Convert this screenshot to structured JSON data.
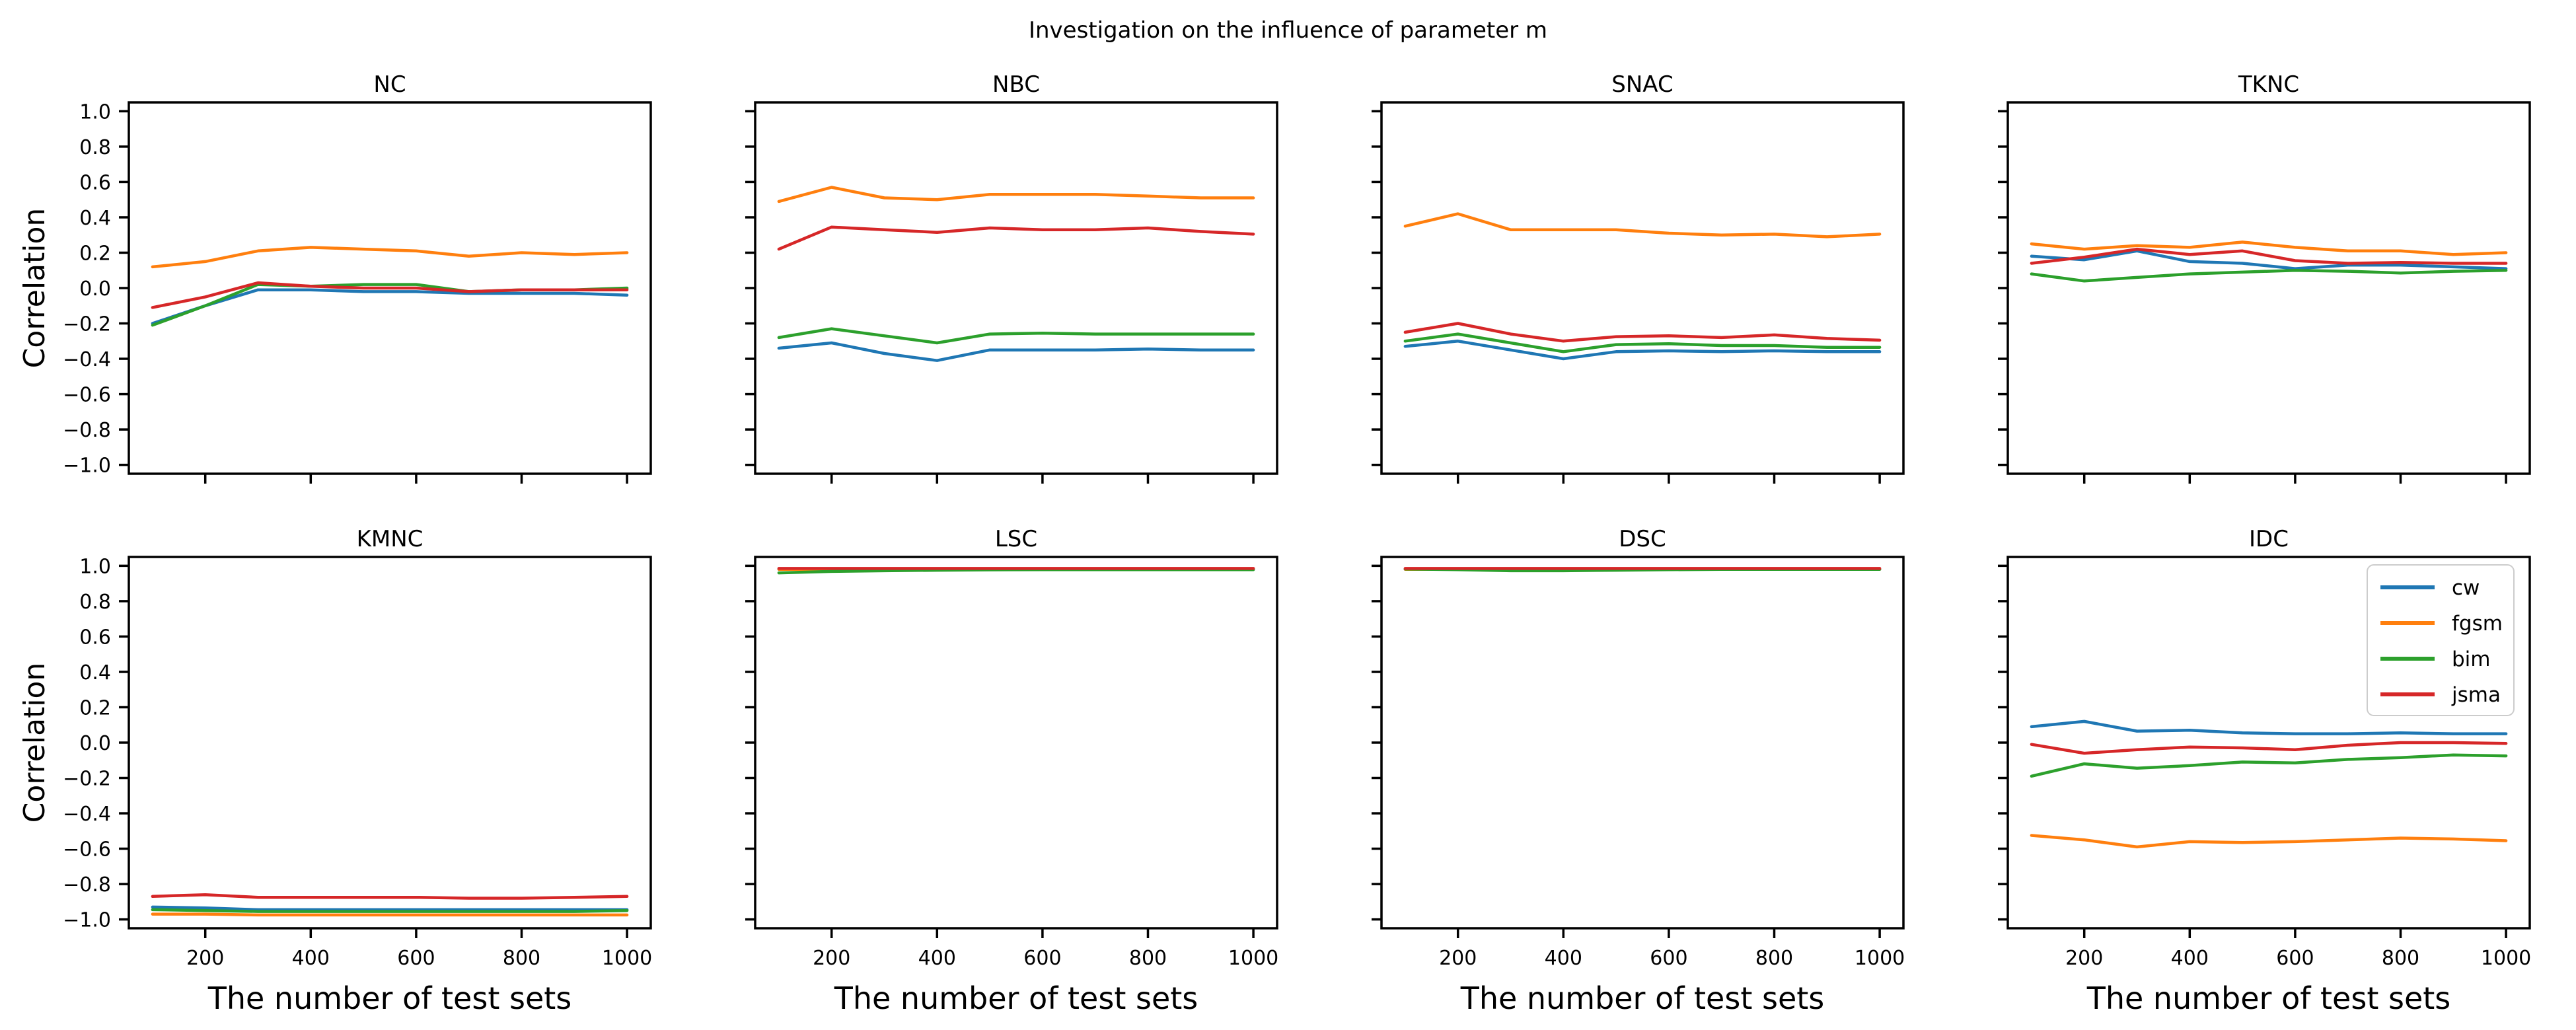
{
  "chart_data": {
    "type": "line",
    "suptitle": "Investigation on the influence of parameter m",
    "xlabel": "The number of test sets",
    "ylabel": "Correlation",
    "x": [
      100,
      200,
      300,
      400,
      500,
      600,
      700,
      800,
      900,
      1000
    ],
    "xticks": [
      200,
      400,
      600,
      800,
      1000
    ],
    "yticks": [
      1.0,
      0.8,
      0.6,
      0.4,
      0.2,
      0.0,
      -0.2,
      -0.4,
      -0.6,
      -0.8,
      -1.0
    ],
    "xlim": [
      55,
      1045
    ],
    "ylim": [
      -1.05,
      1.05
    ],
    "grid": false,
    "series_order": [
      "cw",
      "fgsm",
      "bim",
      "jsma"
    ],
    "series_colors": {
      "cw": "#1f77b4",
      "fgsm": "#ff7f0e",
      "bim": "#2ca02c",
      "jsma": "#d62728"
    },
    "legend": {
      "panel": "IDC",
      "position": "upper right",
      "entries": [
        "cw",
        "fgsm",
        "bim",
        "jsma"
      ]
    },
    "panels": [
      {
        "title": "NC",
        "series": {
          "cw": [
            -0.2,
            -0.1,
            -0.01,
            -0.01,
            -0.02,
            -0.02,
            -0.03,
            -0.03,
            -0.03,
            -0.04
          ],
          "fgsm": [
            0.12,
            0.15,
            0.21,
            0.23,
            0.22,
            0.21,
            0.18,
            0.2,
            0.19,
            0.2
          ],
          "bim": [
            -0.21,
            -0.1,
            0.02,
            0.01,
            0.02,
            0.02,
            -0.02,
            -0.01,
            -0.01,
            0.0
          ],
          "jsma": [
            -0.11,
            -0.05,
            0.03,
            0.01,
            0.0,
            0.0,
            -0.02,
            -0.01,
            -0.01,
            -0.01
          ]
        }
      },
      {
        "title": "NBC",
        "series": {
          "cw": [
            -0.34,
            -0.31,
            -0.37,
            -0.41,
            -0.35,
            -0.35,
            -0.35,
            -0.345,
            -0.35,
            -0.35
          ],
          "fgsm": [
            0.49,
            0.57,
            0.51,
            0.5,
            0.53,
            0.53,
            0.53,
            0.52,
            0.51,
            0.51
          ],
          "bim": [
            -0.28,
            -0.23,
            -0.27,
            -0.31,
            -0.26,
            -0.255,
            -0.26,
            -0.26,
            -0.26,
            -0.26
          ],
          "jsma": [
            0.22,
            0.345,
            0.33,
            0.315,
            0.34,
            0.33,
            0.33,
            0.34,
            0.32,
            0.305
          ]
        }
      },
      {
        "title": "SNAC",
        "series": {
          "cw": [
            -0.33,
            -0.3,
            -0.35,
            -0.4,
            -0.36,
            -0.355,
            -0.36,
            -0.355,
            -0.36,
            -0.36
          ],
          "fgsm": [
            0.35,
            0.42,
            0.33,
            0.33,
            0.33,
            0.31,
            0.3,
            0.305,
            0.29,
            0.305
          ],
          "bim": [
            -0.3,
            -0.26,
            -0.31,
            -0.36,
            -0.32,
            -0.315,
            -0.325,
            -0.325,
            -0.335,
            -0.335
          ],
          "jsma": [
            -0.25,
            -0.2,
            -0.26,
            -0.3,
            -0.275,
            -0.27,
            -0.28,
            -0.265,
            -0.285,
            -0.295
          ]
        }
      },
      {
        "title": "TKNC",
        "series": {
          "cw": [
            0.18,
            0.16,
            0.21,
            0.15,
            0.14,
            0.11,
            0.13,
            0.13,
            0.12,
            0.11
          ],
          "fgsm": [
            0.25,
            0.22,
            0.24,
            0.23,
            0.26,
            0.23,
            0.21,
            0.21,
            0.19,
            0.2
          ],
          "bim": [
            0.08,
            0.04,
            0.06,
            0.08,
            0.09,
            0.1,
            0.095,
            0.085,
            0.095,
            0.1
          ],
          "jsma": [
            0.14,
            0.175,
            0.22,
            0.19,
            0.21,
            0.155,
            0.14,
            0.145,
            0.14,
            0.14
          ]
        }
      },
      {
        "title": "KMNC",
        "series": {
          "cw": [
            -0.93,
            -0.935,
            -0.945,
            -0.945,
            -0.945,
            -0.945,
            -0.945,
            -0.945,
            -0.945,
            -0.945
          ],
          "fgsm": [
            -0.97,
            -0.97,
            -0.975,
            -0.975,
            -0.975,
            -0.975,
            -0.975,
            -0.975,
            -0.975,
            -0.975
          ],
          "bim": [
            -0.945,
            -0.95,
            -0.955,
            -0.955,
            -0.955,
            -0.955,
            -0.955,
            -0.955,
            -0.955,
            -0.95
          ],
          "jsma": [
            -0.87,
            -0.86,
            -0.875,
            -0.875,
            -0.875,
            -0.875,
            -0.88,
            -0.88,
            -0.875,
            -0.87
          ]
        }
      },
      {
        "title": "LSC",
        "series": {
          "cw": [
            0.98,
            0.98,
            0.98,
            0.98,
            0.98,
            0.98,
            0.98,
            0.98,
            0.98,
            0.98
          ],
          "fgsm": [
            0.98,
            0.98,
            0.98,
            0.98,
            0.98,
            0.98,
            0.98,
            0.98,
            0.98,
            0.98
          ],
          "bim": [
            0.96,
            0.968,
            0.972,
            0.975,
            0.977,
            0.978,
            0.978,
            0.978,
            0.978,
            0.978
          ],
          "jsma": [
            0.985,
            0.985,
            0.985,
            0.985,
            0.985,
            0.985,
            0.985,
            0.985,
            0.985,
            0.985
          ]
        }
      },
      {
        "title": "DSC",
        "series": {
          "cw": [
            0.98,
            0.98,
            0.978,
            0.978,
            0.98,
            0.98,
            0.98,
            0.98,
            0.98,
            0.98
          ],
          "fgsm": [
            0.98,
            0.98,
            0.978,
            0.978,
            0.98,
            0.98,
            0.98,
            0.98,
            0.98,
            0.98
          ],
          "bim": [
            0.982,
            0.978,
            0.972,
            0.972,
            0.975,
            0.978,
            0.98,
            0.98,
            0.98,
            0.98
          ],
          "jsma": [
            0.985,
            0.985,
            0.985,
            0.985,
            0.985,
            0.985,
            0.985,
            0.985,
            0.985,
            0.985
          ]
        }
      },
      {
        "title": "IDC",
        "series": {
          "cw": [
            0.09,
            0.12,
            0.065,
            0.07,
            0.055,
            0.05,
            0.05,
            0.055,
            0.05,
            0.05
          ],
          "fgsm": [
            -0.525,
            -0.55,
            -0.59,
            -0.56,
            -0.565,
            -0.56,
            -0.55,
            -0.54,
            -0.545,
            -0.555
          ],
          "bim": [
            -0.19,
            -0.12,
            -0.145,
            -0.13,
            -0.11,
            -0.115,
            -0.095,
            -0.085,
            -0.07,
            -0.075
          ],
          "jsma": [
            -0.01,
            -0.06,
            -0.04,
            -0.025,
            -0.03,
            -0.04,
            -0.015,
            0.0,
            0.0,
            -0.005
          ]
        }
      }
    ]
  }
}
